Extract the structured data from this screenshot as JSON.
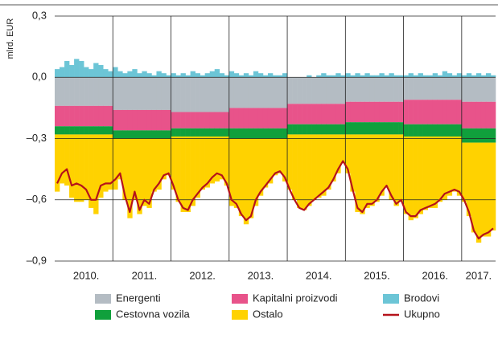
{
  "chart_data": {
    "type": "bar",
    "stacked": true,
    "y_axis_label": "mlrd. EUR",
    "ylim": [
      -0.9,
      0.3
    ],
    "yticks": [
      {
        "value": -0.9,
        "label": "–0,9"
      },
      {
        "value": -0.6,
        "label": "–0,6"
      },
      {
        "value": -0.3,
        "label": "–0,3"
      },
      {
        "value": 0,
        "label": "0,0"
      },
      {
        "value": 0.3,
        "label": "0,3"
      }
    ],
    "grid": true,
    "categories": [
      null,
      null,
      null,
      null,
      null,
      null,
      "2010.",
      null,
      null,
      null,
      null,
      null,
      null,
      null,
      null,
      null,
      null,
      null,
      "2011.",
      null,
      null,
      null,
      null,
      null,
      null,
      null,
      null,
      null,
      null,
      null,
      "2012.",
      null,
      null,
      null,
      null,
      null,
      null,
      null,
      null,
      null,
      null,
      null,
      "2013.",
      null,
      null,
      null,
      null,
      null,
      null,
      null,
      null,
      null,
      null,
      null,
      "2014.",
      null,
      null,
      null,
      null,
      null,
      null,
      null,
      null,
      null,
      null,
      null,
      "2015.",
      null,
      null,
      null,
      null,
      null,
      null,
      null,
      null,
      null,
      null,
      null,
      "2016.",
      null,
      null,
      null,
      null,
      null,
      null,
      null,
      null,
      "2017.",
      null,
      null,
      null
    ],
    "series": [
      {
        "name": "Energenti",
        "color": "#b4bcc3",
        "values": [
          -0.14,
          -0.14,
          -0.14,
          -0.14,
          -0.14,
          -0.14,
          -0.14,
          -0.14,
          -0.14,
          -0.14,
          -0.14,
          -0.14,
          -0.16,
          -0.16,
          -0.16,
          -0.16,
          -0.16,
          -0.16,
          -0.16,
          -0.16,
          -0.16,
          -0.16,
          -0.16,
          -0.16,
          -0.17,
          -0.17,
          -0.17,
          -0.17,
          -0.17,
          -0.17,
          -0.17,
          -0.17,
          -0.17,
          -0.17,
          -0.17,
          -0.17,
          -0.15,
          -0.15,
          -0.15,
          -0.15,
          -0.15,
          -0.15,
          -0.15,
          -0.15,
          -0.15,
          -0.15,
          -0.15,
          -0.15,
          -0.13,
          -0.13,
          -0.13,
          -0.13,
          -0.13,
          -0.13,
          -0.13,
          -0.13,
          -0.13,
          -0.13,
          -0.13,
          -0.13,
          -0.12,
          -0.12,
          -0.12,
          -0.12,
          -0.12,
          -0.12,
          -0.12,
          -0.12,
          -0.12,
          -0.12,
          -0.12,
          -0.12,
          -0.11,
          -0.11,
          -0.11,
          -0.11,
          -0.11,
          -0.11,
          -0.11,
          -0.11,
          -0.11,
          -0.11,
          -0.11,
          -0.11,
          -0.12,
          -0.12,
          -0.12,
          -0.12,
          -0.12,
          -0.12,
          -0.12
        ]
      },
      {
        "name": "Kapitalni proizvodi",
        "color": "#e8538a",
        "values": [
          -0.1,
          -0.1,
          -0.1,
          -0.1,
          -0.1,
          -0.1,
          -0.1,
          -0.1,
          -0.1,
          -0.1,
          -0.1,
          -0.1,
          -0.1,
          -0.1,
          -0.1,
          -0.1,
          -0.1,
          -0.1,
          -0.1,
          -0.1,
          -0.1,
          -0.1,
          -0.1,
          -0.1,
          -0.08,
          -0.08,
          -0.08,
          -0.08,
          -0.08,
          -0.08,
          -0.08,
          -0.08,
          -0.08,
          -0.08,
          -0.08,
          -0.08,
          -0.1,
          -0.1,
          -0.1,
          -0.1,
          -0.1,
          -0.1,
          -0.1,
          -0.1,
          -0.1,
          -0.1,
          -0.1,
          -0.1,
          -0.1,
          -0.1,
          -0.1,
          -0.1,
          -0.1,
          -0.1,
          -0.1,
          -0.1,
          -0.1,
          -0.1,
          -0.1,
          -0.1,
          -0.1,
          -0.1,
          -0.1,
          -0.1,
          -0.1,
          -0.1,
          -0.1,
          -0.1,
          -0.1,
          -0.1,
          -0.1,
          -0.1,
          -0.12,
          -0.12,
          -0.12,
          -0.12,
          -0.12,
          -0.12,
          -0.12,
          -0.12,
          -0.12,
          -0.12,
          -0.12,
          -0.12,
          -0.13,
          -0.13,
          -0.13,
          -0.13,
          -0.13,
          -0.13,
          -0.13
        ]
      },
      {
        "name": "Brodovi",
        "color": "#6cc5d6",
        "values": [
          0.04,
          0.05,
          0.08,
          0.06,
          0.09,
          0.08,
          0.05,
          0.04,
          0.07,
          0.06,
          0.04,
          0.03,
          0.05,
          0.03,
          0.02,
          0.03,
          0.04,
          0.02,
          0.03,
          0.02,
          0.01,
          0.03,
          0.02,
          0.01,
          0.02,
          0.01,
          0.02,
          0.01,
          0.03,
          0.02,
          0.01,
          0.02,
          0.03,
          0.04,
          0.02,
          0.01,
          0.03,
          0.02,
          0.01,
          0.02,
          0.01,
          0.03,
          0.02,
          0.01,
          0.02,
          0.01,
          0.01,
          0.02,
          0,
          0,
          0,
          0,
          0.01,
          0,
          0.01,
          0.02,
          0.01,
          0.01,
          0.02,
          0.01,
          0.02,
          0.01,
          0.02,
          0.01,
          0.02,
          0.01,
          0.01,
          0.02,
          0.01,
          0.02,
          0.01,
          0.01,
          0.01,
          0.02,
          0.01,
          0.02,
          0.01,
          0.01,
          0.02,
          0.01,
          0.03,
          0.02,
          0.01,
          0.02,
          0.01,
          0.02,
          0.01,
          0.02,
          0.01,
          0.02,
          0.01
        ]
      },
      {
        "name": "Cestovna vozila",
        "color": "#10a03c",
        "values": [
          -0.04,
          -0.04,
          -0.04,
          -0.04,
          -0.04,
          -0.04,
          -0.04,
          -0.04,
          -0.04,
          -0.04,
          -0.04,
          -0.04,
          -0.04,
          -0.04,
          -0.04,
          -0.04,
          -0.04,
          -0.04,
          -0.04,
          -0.04,
          -0.04,
          -0.04,
          -0.04,
          -0.04,
          -0.04,
          -0.04,
          -0.04,
          -0.04,
          -0.04,
          -0.04,
          -0.04,
          -0.04,
          -0.04,
          -0.04,
          -0.04,
          -0.04,
          -0.05,
          -0.05,
          -0.05,
          -0.05,
          -0.05,
          -0.05,
          -0.05,
          -0.05,
          -0.05,
          -0.05,
          -0.05,
          -0.05,
          -0.05,
          -0.05,
          -0.05,
          -0.05,
          -0.05,
          -0.05,
          -0.05,
          -0.05,
          -0.05,
          -0.05,
          -0.05,
          -0.05,
          -0.06,
          -0.06,
          -0.06,
          -0.06,
          -0.06,
          -0.06,
          -0.06,
          -0.06,
          -0.06,
          -0.06,
          -0.06,
          -0.06,
          -0.06,
          -0.06,
          -0.06,
          -0.06,
          -0.06,
          -0.06,
          -0.06,
          -0.06,
          -0.06,
          -0.06,
          -0.06,
          -0.06,
          -0.07,
          -0.07,
          -0.07,
          -0.07,
          -0.07,
          -0.07,
          -0.07
        ]
      },
      {
        "name": "Ostalo",
        "color": "#ffd200",
        "values": [
          -0.28,
          -0.24,
          -0.25,
          -0.31,
          -0.33,
          -0.33,
          -0.32,
          -0.36,
          -0.39,
          -0.31,
          -0.28,
          -0.27,
          -0.25,
          -0.2,
          -0.3,
          -0.39,
          -0.3,
          -0.37,
          -0.33,
          -0.34,
          -0.26,
          -0.25,
          -0.2,
          -0.18,
          -0.26,
          -0.32,
          -0.37,
          -0.37,
          -0.34,
          -0.3,
          -0.26,
          -0.25,
          -0.23,
          -0.22,
          -0.21,
          -0.24,
          -0.33,
          -0.34,
          -0.38,
          -0.42,
          -0.39,
          -0.33,
          -0.28,
          -0.24,
          -0.22,
          -0.18,
          -0.17,
          -0.21,
          -0.27,
          -0.32,
          -0.36,
          -0.37,
          -0.35,
          -0.32,
          -0.31,
          -0.3,
          -0.27,
          -0.23,
          -0.19,
          -0.14,
          -0.19,
          -0.28,
          -0.38,
          -0.39,
          -0.36,
          -0.35,
          -0.33,
          -0.3,
          -0.26,
          -0.32,
          -0.35,
          -0.33,
          -0.38,
          -0.41,
          -0.4,
          -0.38,
          -0.36,
          -0.35,
          -0.35,
          -0.32,
          -0.31,
          -0.29,
          -0.27,
          -0.29,
          -0.29,
          -0.36,
          -0.44,
          -0.49,
          -0.46,
          -0.46,
          -0.43
        ]
      },
      {
        "name": "Ukupno",
        "color": "#b5121b",
        "type": "line",
        "values": [
          -0.52,
          -0.47,
          -0.45,
          -0.53,
          -0.52,
          -0.53,
          -0.55,
          -0.6,
          -0.6,
          -0.53,
          -0.52,
          -0.52,
          -0.5,
          -0.47,
          -0.58,
          -0.66,
          -0.56,
          -0.65,
          -0.6,
          -0.62,
          -0.55,
          -0.52,
          -0.48,
          -0.47,
          -0.53,
          -0.6,
          -0.64,
          -0.65,
          -0.6,
          -0.57,
          -0.54,
          -0.52,
          -0.49,
          -0.47,
          -0.48,
          -0.52,
          -0.6,
          -0.62,
          -0.67,
          -0.7,
          -0.68,
          -0.6,
          -0.56,
          -0.53,
          -0.5,
          -0.47,
          -0.46,
          -0.49,
          -0.55,
          -0.6,
          -0.64,
          -0.65,
          -0.62,
          -0.6,
          -0.58,
          -0.56,
          -0.54,
          -0.5,
          -0.45,
          -0.41,
          -0.45,
          -0.55,
          -0.64,
          -0.66,
          -0.62,
          -0.62,
          -0.6,
          -0.56,
          -0.53,
          -0.58,
          -0.62,
          -0.6,
          -0.66,
          -0.68,
          -0.68,
          -0.65,
          -0.64,
          -0.63,
          -0.62,
          -0.6,
          -0.57,
          -0.56,
          -0.55,
          -0.56,
          -0.6,
          -0.66,
          -0.75,
          -0.79,
          -0.77,
          -0.76,
          -0.74
        ]
      }
    ]
  }
}
